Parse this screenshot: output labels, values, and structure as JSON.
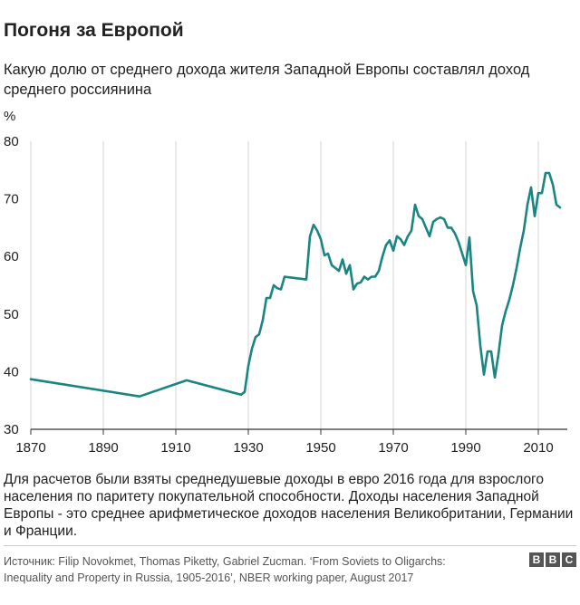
{
  "header": {
    "title": "Погоня за Европой",
    "subtitle": "Какую долю от среднего дохода жителя Западной Европы составлял доход среднего россиянина",
    "unit": "%"
  },
  "footnote": "Для расчетов были взяты среднедушевые доходы в евро 2016 года для взрослого населения по паритету покупательной способности. Доходы населения Западной Европы - это среднее арифметическое доходов населения Великобритании, Германии и Франции.",
  "source": "Источник: Filip Novokmet, Thomas Piketty, Gabriel Zucman. ‘From Soviets to Oligarchs: Inequality and Property in Russia, 1905-2016’, NBER working paper, August 2017",
  "logo": {
    "letters": [
      "B",
      "B",
      "C"
    ]
  },
  "colors": {
    "line": "#1b8581",
    "grid": "#d5d5d5",
    "axis": "#333333",
    "text": "#222222"
  },
  "chart_data": {
    "type": "line",
    "title": "Погоня за Европой",
    "xlabel": "",
    "ylabel": "%",
    "xlim": [
      1870,
      2018
    ],
    "ylim": [
      30,
      80
    ],
    "xticks": [
      1870,
      1890,
      1910,
      1930,
      1950,
      1970,
      1990,
      2010
    ],
    "yticks": [
      30,
      40,
      50,
      60,
      70,
      80
    ],
    "grid": {
      "vertical": true,
      "horizontal": false
    },
    "series": [
      {
        "x": [
          1870,
          1900,
          1913,
          1928,
          1929,
          1930,
          1931,
          1932,
          1933,
          1934,
          1935,
          1936,
          1937,
          1938,
          1939,
          1940,
          1941,
          1946,
          1947,
          1948,
          1949,
          1950,
          1951,
          1952,
          1953,
          1954,
          1955,
          1956,
          1957,
          1958,
          1959,
          1960,
          1961,
          1962,
          1963,
          1964,
          1965,
          1966,
          1967,
          1968,
          1969,
          1970,
          1971,
          1972,
          1973,
          1974,
          1975,
          1976,
          1977,
          1978,
          1979,
          1980,
          1981,
          1982,
          1983,
          1984,
          1985,
          1986,
          1987,
          1988,
          1989,
          1990,
          1991,
          1992,
          1993,
          1994,
          1995,
          1996,
          1997,
          1998,
          1999,
          2000,
          2001,
          2002,
          2003,
          2004,
          2005,
          2006,
          2007,
          2008,
          2009,
          2010,
          2011,
          2012,
          2013,
          2014,
          2015,
          2016
        ],
        "values": [
          38.7,
          35.7,
          38.5,
          36.0,
          36.5,
          41.0,
          44.0,
          46.0,
          46.5,
          49.0,
          52.8,
          52.8,
          55.0,
          54.5,
          54.3,
          56.5,
          56.4,
          56.0,
          63.5,
          65.5,
          64.5,
          63.0,
          60.2,
          60.5,
          58.5,
          58.0,
          57.5,
          59.5,
          57.0,
          58.5,
          54.3,
          55.3,
          55.5,
          56.5,
          56.0,
          56.5,
          56.5,
          57.5,
          60.0,
          62.0,
          62.8,
          61.0,
          63.5,
          63.0,
          62.0,
          63.5,
          64.5,
          69.0,
          67.0,
          66.5,
          65.0,
          63.5,
          66.0,
          66.5,
          66.8,
          66.5,
          65.0,
          65.0,
          64.0,
          62.5,
          60.5,
          58.5,
          63.3,
          54.0,
          51.5,
          44.5,
          39.5,
          43.5,
          43.5,
          39.0,
          43.0,
          48.0,
          50.5,
          52.5,
          55.0,
          58.0,
          61.5,
          64.5,
          69.0,
          72.0,
          67.0,
          71.0,
          71.0,
          74.5,
          74.5,
          72.5,
          69.0,
          68.5
        ]
      }
    ]
  }
}
